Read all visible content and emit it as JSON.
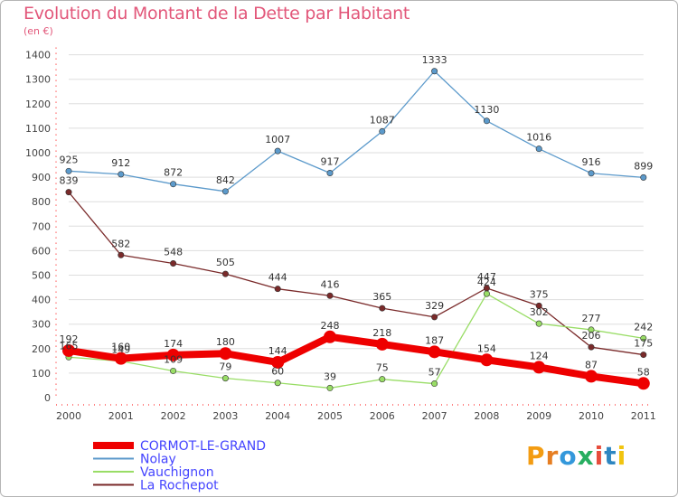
{
  "title": "Evolution du Montant de la Dette par Habitant",
  "subtitle": "(en €)",
  "logo": [
    "P",
    "r",
    "o",
    "x",
    "i",
    "t",
    "i"
  ],
  "chart_data": {
    "type": "line",
    "title": "Evolution du Montant de la Dette par Habitant",
    "ylabel": "(en €)",
    "x": [
      "2000",
      "2001",
      "2002",
      "2003",
      "2004",
      "2005",
      "2006",
      "2007",
      "2008",
      "2009",
      "2010",
      "2011"
    ],
    "ylim": [
      0,
      1400
    ],
    "yticks": [
      0,
      100,
      200,
      300,
      400,
      500,
      600,
      700,
      800,
      900,
      1000,
      1100,
      1200,
      1300,
      1400
    ],
    "grid": true,
    "legend": "bottom-left",
    "series": [
      {
        "name": "CORMOT-LE-GRAND",
        "color": "#ee0000",
        "values": [
          192,
          160,
          174,
          180,
          144,
          248,
          218,
          187,
          154,
          124,
          87,
          58
        ]
      },
      {
        "name": "Nolay",
        "color": "#5c9acb",
        "values": [
          925,
          912,
          872,
          842,
          1007,
          917,
          1087,
          1333,
          1130,
          1016,
          916,
          899
        ]
      },
      {
        "name": "Vauchignon",
        "color": "#99dd66",
        "values": [
          165,
          149,
          109,
          79,
          60,
          39,
          75,
          57,
          424,
          302,
          277,
          242
        ]
      },
      {
        "name": "La Rochepot",
        "color": "#7a2a2a",
        "values": [
          839,
          582,
          548,
          505,
          444,
          416,
          365,
          329,
          447,
          375,
          206,
          175
        ]
      }
    ]
  },
  "colors": {
    "title": "#e2577a",
    "axis": "#ff0000",
    "grid": "#dddddd",
    "legend_text": "#4444ff"
  }
}
